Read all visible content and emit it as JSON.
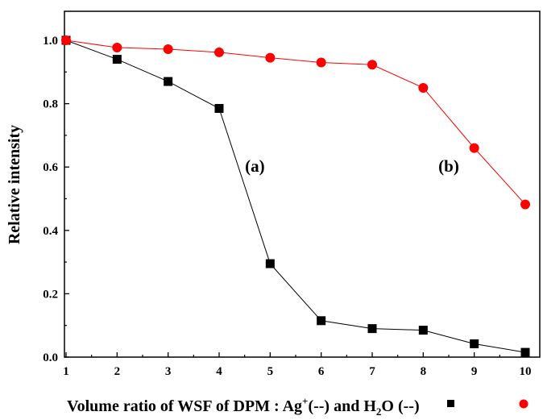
{
  "chart_data": {
    "type": "line",
    "title": "",
    "xlabel": {
      "prefix": "Volume ratio of WSF of DPM : Ag",
      "sup": "+",
      "mid": "(-",
      "post_a": "-) and H",
      "sub": "2",
      "post_b": "O (-",
      "end": "-)"
    },
    "ylabel": "Relative intensity",
    "xlim": [
      1,
      10
    ],
    "ylim": [
      0,
      1.0
    ],
    "x_ticks": [
      "1",
      "2",
      "3",
      "4",
      "5",
      "6",
      "7",
      "8",
      "9",
      "10"
    ],
    "y_ticks": [
      "0.0",
      "0.2",
      "0.4",
      "0.6",
      "0.8",
      "1.0"
    ],
    "grid": false,
    "x": [
      1,
      2,
      3,
      4,
      5,
      6,
      7,
      8,
      9,
      10
    ],
    "series": [
      {
        "marker": "square",
        "color": "#000000",
        "values": [
          1.0,
          0.94,
          0.87,
          0.785,
          0.295,
          0.115,
          0.09,
          0.085,
          0.042,
          0.015
        ]
      },
      {
        "marker": "circle",
        "color": "#ff0000",
        "values": [
          1.0,
          0.977,
          0.972,
          0.962,
          0.945,
          0.93,
          0.923,
          0.85,
          0.66,
          0.482
        ]
      }
    ],
    "annotations": [
      {
        "text": "(a)",
        "x": 4.7,
        "y": 0.585
      },
      {
        "text": "(b)",
        "x": 8.5,
        "y": 0.585
      }
    ]
  }
}
